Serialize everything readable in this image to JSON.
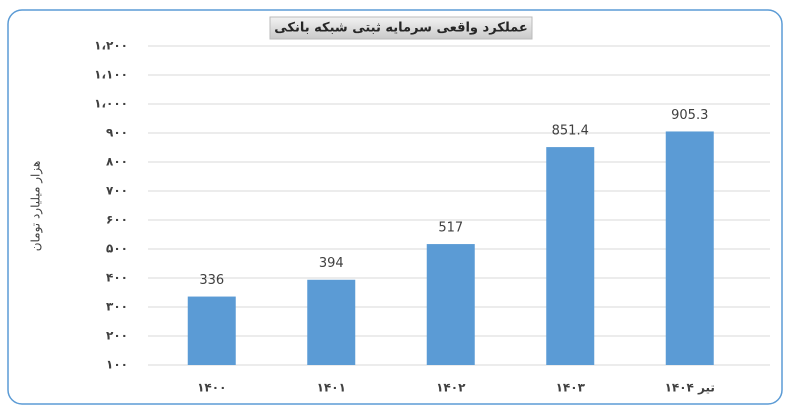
{
  "chart_data": {
    "type": "bar",
    "title": "عملکرد واقعی سرمایه ثبتی شبکه بانکی",
    "y_label": "هزار میلیارد تومان",
    "categories": [
      "۱۴۰۰",
      "۱۴۰۱",
      "۱۴۰۲",
      "۱۴۰۳",
      "تیر ۱۴۰۴"
    ],
    "values": [
      336,
      394,
      517,
      851.4,
      905.3
    ],
    "color": "#5b9bd5",
    "ylim": [
      100,
      1200
    ],
    "yticks": [
      {
        "value": 100,
        "label": "۱۰۰"
      },
      {
        "value": 200,
        "label": "۲۰۰"
      },
      {
        "value": 300,
        "label": "۳۰۰"
      },
      {
        "value": 400,
        "label": "۴۰۰"
      },
      {
        "value": 500,
        "label": "۵۰۰"
      },
      {
        "value": 600,
        "label": "۶۰۰"
      },
      {
        "value": 700,
        "label": "۷۰۰"
      },
      {
        "value": 800,
        "label": "۸۰۰"
      },
      {
        "value": 900,
        "label": "۹۰۰"
      },
      {
        "value": 1000,
        "label": "۱،۰۰۰"
      },
      {
        "value": 1100,
        "label": "۱،۱۰۰"
      },
      {
        "value": 1200,
        "label": "۱،۲۰۰"
      }
    ],
    "grid": true
  }
}
